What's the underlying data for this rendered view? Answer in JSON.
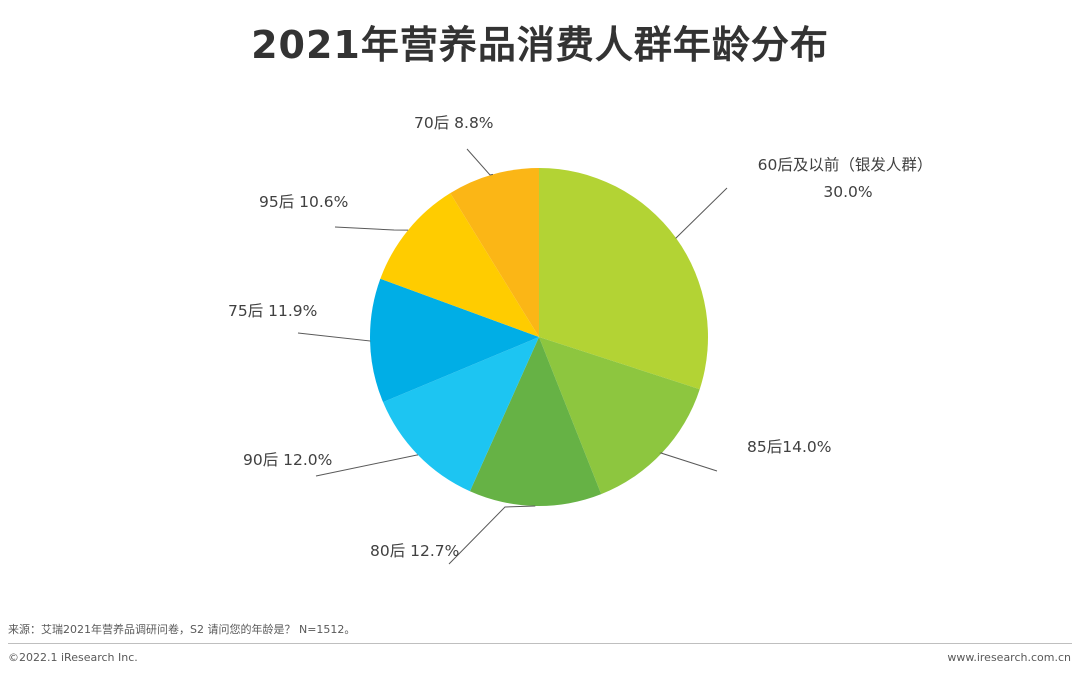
{
  "title": "2021年营养品消费人群年龄分布",
  "chart_data": {
    "type": "pie",
    "categories": [
      "60后及以前（银发人群）",
      "85后",
      "80后",
      "90后",
      "75后",
      "95后",
      "70后"
    ],
    "values": [
      30.0,
      14.0,
      12.7,
      12.0,
      11.9,
      10.6,
      8.8
    ],
    "unit": "%",
    "labels": [
      {
        "lines": [
          "60后及以前（银发人群）",
          "30.0%"
        ]
      },
      {
        "lines": [
          "85后14.0%"
        ]
      },
      {
        "lines": [
          "80后 12.7%"
        ]
      },
      {
        "lines": [
          "90后 12.0%"
        ]
      },
      {
        "lines": [
          "75后 11.9%"
        ]
      },
      {
        "lines": [
          "95后 10.6%"
        ]
      },
      {
        "lines": [
          "70后 8.8%"
        ]
      }
    ],
    "colors": [
      "#B3D334",
      "#8DC63F",
      "#66B245",
      "#1DC5F2",
      "#00AEE6",
      "#FFCC00",
      "#FBB616"
    ],
    "start_angle": "12 o'clock, clockwise",
    "legend": "none"
  },
  "source": "来源：艾瑞2021年营养品调研问卷，S2 请问您的年龄是？ N=1512。",
  "footer": {
    "copyright": "©2022.1 iResearch Inc.",
    "website": "www.iresearch.com.cn"
  }
}
